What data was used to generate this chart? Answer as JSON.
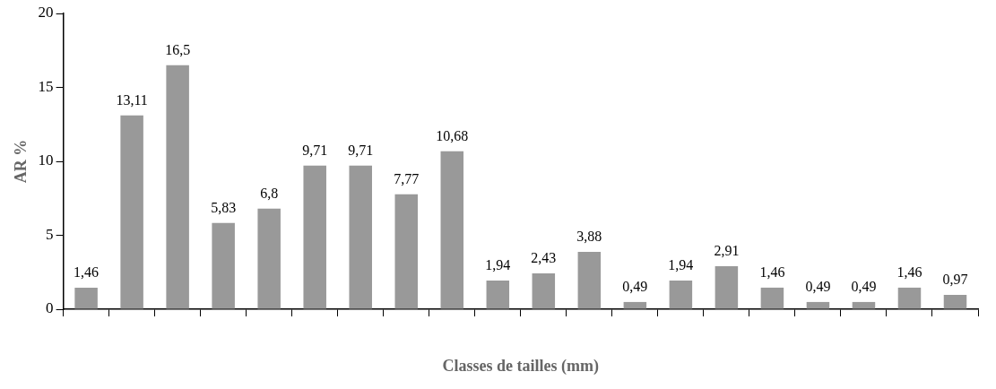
{
  "chart_data": {
    "type": "bar",
    "xlabel": "Classes de tailles (mm)",
    "ylabel": "AR %",
    "categories": [
      null,
      null,
      null,
      null,
      null,
      null,
      null,
      null,
      null,
      null,
      null,
      null,
      null,
      null,
      null,
      null,
      null,
      null,
      null,
      null
    ],
    "values": [
      1.46,
      13.11,
      16.5,
      5.83,
      6.8,
      9.71,
      9.71,
      7.77,
      10.68,
      1.94,
      2.43,
      3.88,
      0.49,
      1.94,
      2.91,
      1.46,
      0.49,
      0.49,
      1.46,
      0.97
    ],
    "value_labels": [
      "1,46",
      "13,11",
      "16,5",
      "5,83",
      "6,8",
      "9,71",
      "9,71",
      "7,77",
      "10,68",
      "1,94",
      "2,43",
      "3,88",
      "0,49",
      "1,94",
      "2,91",
      "1,46",
      "0,49",
      "0,49",
      "1,46",
      "0,97"
    ],
    "color": "#999999",
    "ylim": [
      0,
      20
    ],
    "yticks": [
      0,
      5,
      10,
      15,
      20
    ],
    "grid": false,
    "legend": false
  }
}
